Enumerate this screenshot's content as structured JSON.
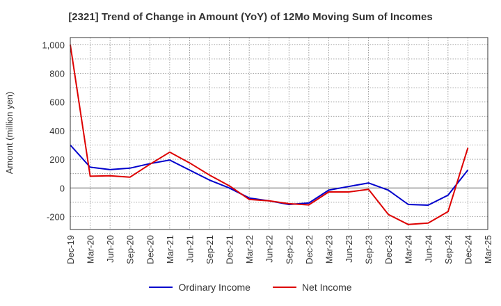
{
  "chart_data": {
    "type": "line",
    "title": "[2321]  Trend of Change in Amount (YoY) of 12Mo Moving Sum of Incomes",
    "xlabel": "",
    "ylabel": "Amount (million yen)",
    "ylim": [
      -290,
      1050
    ],
    "yticks": [
      -200,
      0,
      200,
      400,
      600,
      800,
      1000
    ],
    "ytick_labels": [
      "-200",
      "0",
      "200",
      "400",
      "600",
      "800",
      "1,000"
    ],
    "categories": [
      "Dec-19",
      "Mar-20",
      "Jun-20",
      "Sep-20",
      "Dec-20",
      "Mar-21",
      "Jun-21",
      "Sep-21",
      "Dec-21",
      "Mar-22",
      "Jun-22",
      "Sep-22",
      "Dec-22",
      "Mar-23",
      "Jun-23",
      "Sep-23",
      "Dec-23",
      "Mar-24",
      "Jun-24",
      "Sep-24",
      "Dec-24",
      "Mar-25"
    ],
    "grid": true,
    "legend_position": "bottom",
    "series": [
      {
        "name": "Ordinary Income",
        "color": "#0000cc",
        "values": [
          300,
          145,
          128,
          138,
          170,
          195,
          125,
          55,
          0,
          -70,
          -90,
          -115,
          -105,
          -15,
          10,
          35,
          -15,
          -115,
          -120,
          -50,
          125,
          null
        ]
      },
      {
        "name": "Net Income",
        "color": "#dd0000",
        "values": [
          1000,
          82,
          85,
          75,
          165,
          250,
          175,
          90,
          15,
          -80,
          -90,
          -110,
          -118,
          -28,
          -28,
          -10,
          -185,
          -255,
          -245,
          -165,
          280,
          null
        ]
      }
    ]
  }
}
